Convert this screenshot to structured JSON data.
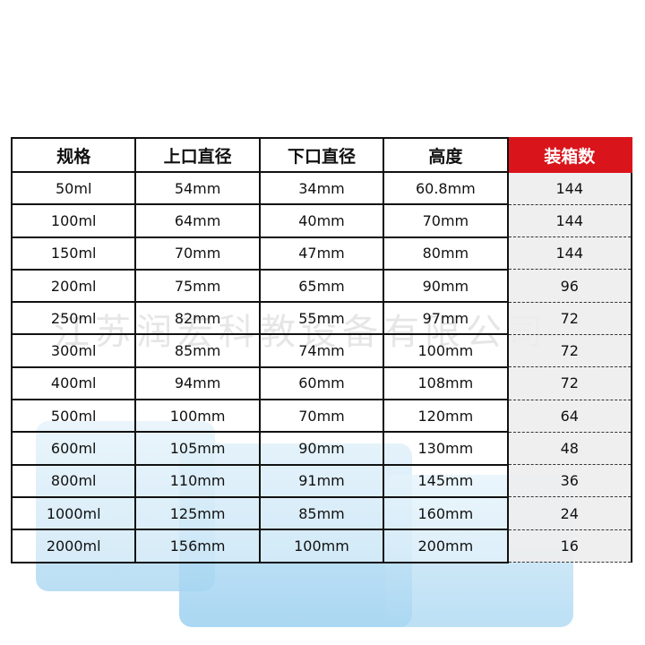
{
  "watermark": "江苏润宏科教设备有限公司",
  "table": {
    "header": [
      "规格",
      "上口直径",
      "下口直径",
      "高度",
      "装箱数"
    ],
    "rows": [
      [
        "50ml",
        "54mm",
        "34mm",
        "60.8mm",
        "144"
      ],
      [
        "100ml",
        "64mm",
        "40mm",
        "70mm",
        "144"
      ],
      [
        "150ml",
        "70mm",
        "47mm",
        "80mm",
        "144"
      ],
      [
        "200ml",
        "75mm",
        "65mm",
        "90mm",
        "96"
      ],
      [
        "250ml",
        "82mm",
        "55mm",
        "97mm",
        "72"
      ],
      [
        "300ml",
        "85mm",
        "74mm",
        "100mm",
        "72"
      ],
      [
        "400ml",
        "94mm",
        "60mm",
        "108mm",
        "72"
      ],
      [
        "500ml",
        "100mm",
        "70mm",
        "120mm",
        "64"
      ],
      [
        "600ml",
        "105mm",
        "90mm",
        "130mm",
        "48"
      ],
      [
        "800ml",
        "110mm",
        "91mm",
        "145mm",
        "36"
      ],
      [
        "1000ml",
        "125mm",
        "85mm",
        "160mm",
        "24"
      ],
      [
        "2000ml",
        "156mm",
        "100mm",
        "200mm",
        "16"
      ]
    ]
  }
}
